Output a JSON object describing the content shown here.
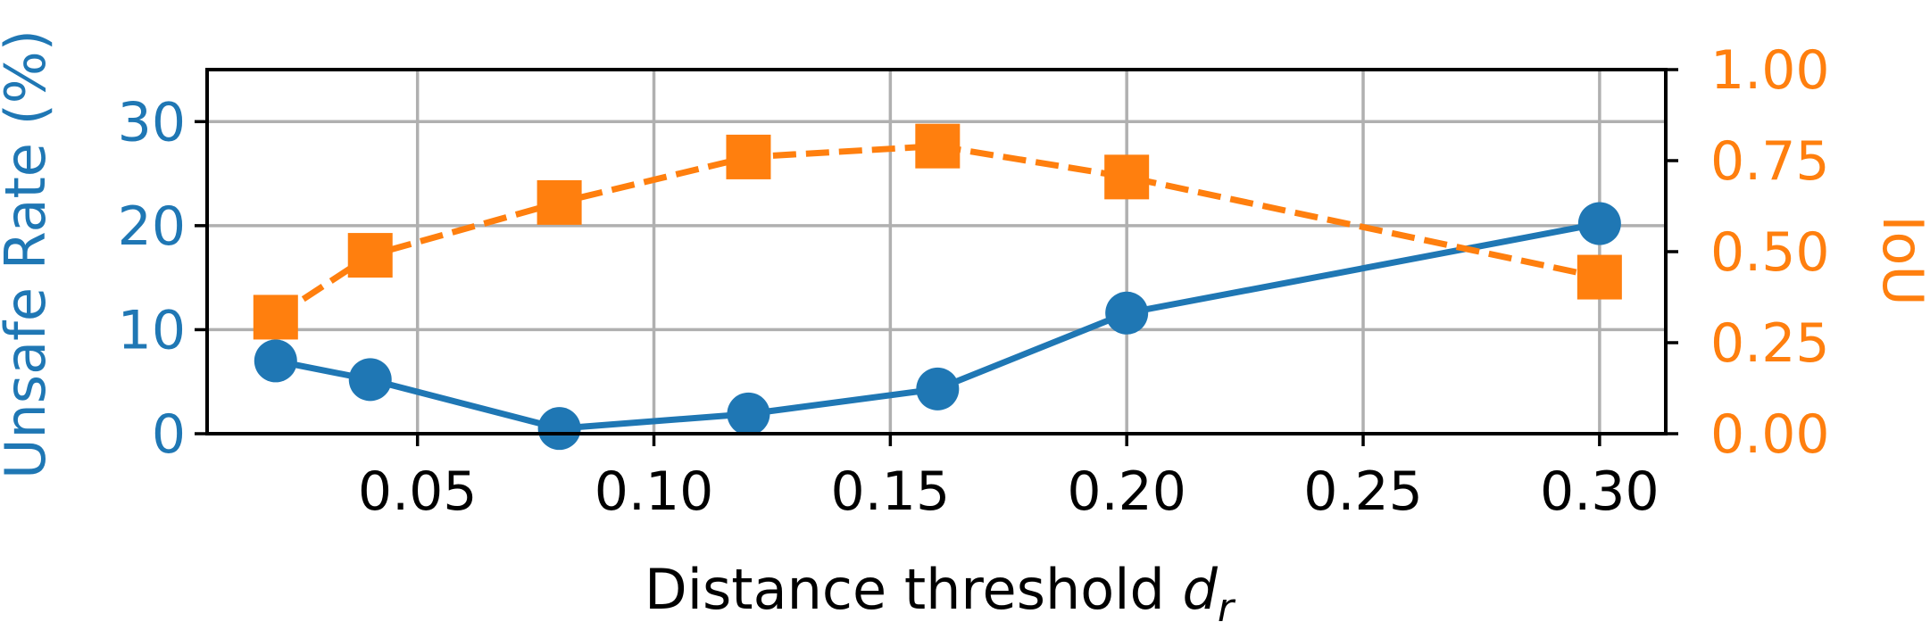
{
  "chart_data": {
    "type": "line",
    "xlabel_text": "Distance threshold ",
    "xlabel_var": "d",
    "xlabel_sub": "r",
    "ylabel_left": "Unsafe Rate (%)",
    "ylabel_right": "IoU",
    "grid": true,
    "x": [
      0.02,
      0.04,
      0.08,
      0.12,
      0.16,
      0.2,
      0.3
    ],
    "xlim": [
      0.0055,
      0.314
    ],
    "ylim_left": [
      0,
      35
    ],
    "ylim_right": [
      0.0,
      1.0
    ],
    "x_ticks": [
      "0.05",
      "0.10",
      "0.15",
      "0.20",
      "0.25",
      "0.30"
    ],
    "y_left_ticks": [
      "0",
      "10",
      "20",
      "30"
    ],
    "y_right_ticks": [
      "0.00",
      "0.25",
      "0.50",
      "0.75",
      "1.00"
    ],
    "colors": {
      "left": "#1f77b4",
      "right": "#ff7f0e",
      "grid": "#b0b0b0",
      "axis": "#000000"
    },
    "series": [
      {
        "axis": "left",
        "marker": "circle",
        "line": "solid",
        "values": [
          7.0,
          5.2,
          0.5,
          1.9,
          4.3,
          11.6,
          20.2
        ]
      },
      {
        "axis": "right",
        "marker": "square",
        "line": "dashed",
        "values": [
          0.32,
          0.49,
          0.635,
          0.76,
          0.79,
          0.705,
          0.43
        ]
      }
    ]
  }
}
